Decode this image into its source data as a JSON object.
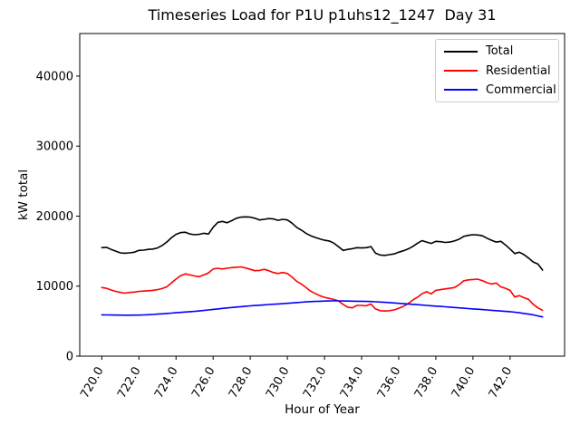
{
  "chart_data": {
    "type": "line",
    "title": "Timeseries Load for P1U p1uhs12_1247  Day 31",
    "xlabel": "Hour of Year",
    "ylabel": "kW total",
    "xlim": [
      718.8125,
      744.9375
    ],
    "ylim": [
      0,
      46080
    ],
    "grid": false,
    "legend_position": "upper right",
    "xticks": {
      "values": [
        720,
        722,
        724,
        726,
        728,
        730,
        732,
        734,
        736,
        738,
        740,
        742
      ],
      "labels": [
        "720.0",
        "722.0",
        "724.0",
        "726.0",
        "728.0",
        "730.0",
        "732.0",
        "734.0",
        "736.0",
        "738.0",
        "740.0",
        "742.0"
      ]
    },
    "yticks": {
      "values": [
        0,
        10000,
        20000,
        30000,
        40000
      ],
      "labels": [
        "0",
        "10000",
        "20000",
        "30000",
        "40000"
      ]
    },
    "x": [
      720.0,
      720.25,
      720.5,
      720.75,
      721.0,
      721.25,
      721.5,
      721.75,
      722.0,
      722.25,
      722.5,
      722.75,
      723.0,
      723.25,
      723.5,
      723.75,
      724.0,
      724.25,
      724.5,
      724.75,
      725.0,
      725.25,
      725.5,
      725.75,
      726.0,
      726.25,
      726.5,
      726.75,
      727.0,
      727.25,
      727.5,
      727.75,
      728.0,
      728.25,
      728.5,
      728.75,
      729.0,
      729.25,
      729.5,
      729.75,
      730.0,
      730.25,
      730.5,
      730.75,
      731.0,
      731.25,
      731.5,
      731.75,
      732.0,
      732.25,
      732.5,
      732.75,
      733.0,
      733.25,
      733.5,
      733.75,
      734.0,
      734.25,
      734.5,
      734.75,
      735.0,
      735.25,
      735.5,
      735.75,
      736.0,
      736.25,
      736.5,
      736.75,
      737.0,
      737.25,
      737.5,
      737.75,
      738.0,
      738.25,
      738.5,
      738.75,
      739.0,
      739.25,
      739.5,
      739.75,
      740.0,
      740.25,
      740.5,
      740.75,
      741.0,
      741.25,
      741.5,
      741.75,
      742.0,
      742.25,
      742.5,
      742.75,
      743.0,
      743.25,
      743.5,
      743.75
    ],
    "series": [
      {
        "name": "Total",
        "color": "#000000",
        "values": [
          15500,
          15550,
          15250,
          15000,
          14750,
          14700,
          14750,
          14850,
          15100,
          15150,
          15250,
          15300,
          15450,
          15800,
          16300,
          16900,
          17400,
          17650,
          17700,
          17450,
          17350,
          17400,
          17550,
          17450,
          18400,
          19100,
          19250,
          19050,
          19350,
          19700,
          19850,
          19900,
          19850,
          19700,
          19450,
          19550,
          19650,
          19600,
          19400,
          19550,
          19450,
          19000,
          18400,
          18000,
          17550,
          17200,
          16950,
          16750,
          16550,
          16450,
          16150,
          15650,
          15100,
          15250,
          15350,
          15500,
          15450,
          15500,
          15650,
          14700,
          14450,
          14400,
          14500,
          14600,
          14850,
          15050,
          15300,
          15650,
          16100,
          16500,
          16300,
          16100,
          16400,
          16350,
          16250,
          16300,
          16450,
          16700,
          17100,
          17250,
          17350,
          17300,
          17200,
          16850,
          16550,
          16300,
          16400,
          15900,
          15300,
          14650,
          14850,
          14500,
          14000,
          13450,
          13150,
          12300
        ]
      },
      {
        "name": "Residential",
        "color": "#ff0000",
        "values": [
          9800,
          9700,
          9450,
          9250,
          9100,
          9000,
          9100,
          9150,
          9250,
          9300,
          9350,
          9400,
          9500,
          9650,
          9900,
          10450,
          11000,
          11500,
          11750,
          11600,
          11450,
          11350,
          11600,
          11900,
          12450,
          12550,
          12450,
          12550,
          12650,
          12700,
          12750,
          12600,
          12400,
          12200,
          12250,
          12400,
          12200,
          11950,
          11800,
          11950,
          11800,
          11300,
          10700,
          10300,
          9800,
          9300,
          8950,
          8650,
          8400,
          8250,
          8100,
          7900,
          7400,
          7000,
          6900,
          7250,
          7250,
          7200,
          7450,
          6750,
          6500,
          6450,
          6500,
          6600,
          6850,
          7100,
          7500,
          8000,
          8400,
          8900,
          9200,
          8900,
          9400,
          9500,
          9600,
          9700,
          9800,
          10200,
          10750,
          10900,
          10950,
          11000,
          10800,
          10500,
          10300,
          10450,
          9900,
          9700,
          9400,
          8450,
          8650,
          8350,
          8100,
          7400,
          6900,
          6550
        ]
      },
      {
        "name": "Commercial",
        "color": "#0000ff",
        "values": [
          5900,
          5890,
          5880,
          5870,
          5860,
          5855,
          5855,
          5860,
          5870,
          5890,
          5920,
          5960,
          6000,
          6050,
          6100,
          6150,
          6200,
          6250,
          6300,
          6350,
          6400,
          6460,
          6520,
          6600,
          6680,
          6750,
          6820,
          6880,
          6950,
          7010,
          7070,
          7130,
          7180,
          7230,
          7280,
          7330,
          7380,
          7420,
          7460,
          7500,
          7550,
          7600,
          7650,
          7700,
          7750,
          7790,
          7820,
          7850,
          7870,
          7880,
          7890,
          7890,
          7880,
          7870,
          7860,
          7850,
          7840,
          7820,
          7800,
          7770,
          7730,
          7690,
          7650,
          7600,
          7550,
          7500,
          7450,
          7400,
          7350,
          7300,
          7250,
          7200,
          7150,
          7100,
          7050,
          7000,
          6950,
          6900,
          6850,
          6800,
          6750,
          6700,
          6650,
          6600,
          6550,
          6500,
          6450,
          6400,
          6350,
          6280,
          6200,
          6100,
          6000,
          5900,
          5750,
          5600
        ]
      }
    ]
  }
}
